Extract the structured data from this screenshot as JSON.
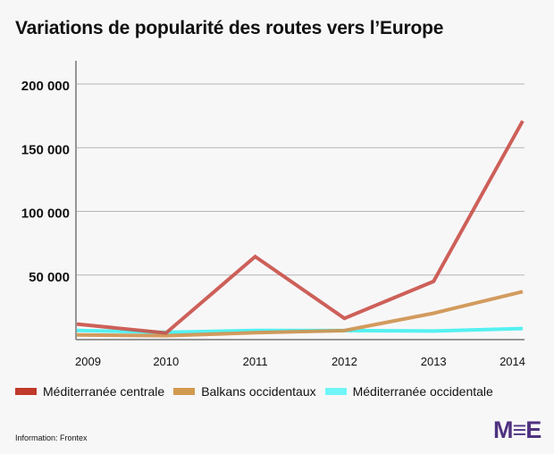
{
  "chart_data": {
    "type": "line",
    "title": "Variations de popularité des routes vers l’Europe",
    "xlabel": "",
    "ylabel": "",
    "categories": [
      "2009",
      "2010",
      "2011",
      "2012",
      "2013",
      "2014"
    ],
    "ylim": [
      0,
      200000
    ],
    "yticks": [
      50000,
      100000,
      150000,
      200000
    ],
    "ytick_labels": [
      "50 000",
      "100 000",
      "150 000",
      "200 000"
    ],
    "grid": true,
    "legend_position": "bottom",
    "series": [
      {
        "name": "Méditerranée centrale",
        "color": "#c9524b",
        "legend_color": "#c0392b",
        "values": [
          11500,
          4500,
          64500,
          16000,
          45000,
          171000
        ]
      },
      {
        "name": "Balkans occidentaux",
        "color": "#cf9350",
        "legend_color": "#d29a4f",
        "values": [
          3000,
          2400,
          4700,
          6400,
          20000,
          37000
        ]
      },
      {
        "name": "Méditerranée occidentale",
        "color": "#45f0f0",
        "legend_color": "#6ff5f8",
        "values": [
          6500,
          5000,
          6500,
          6400,
          6000,
          8000
        ]
      }
    ]
  },
  "source": "Information: Frontex",
  "logo": "MEE"
}
